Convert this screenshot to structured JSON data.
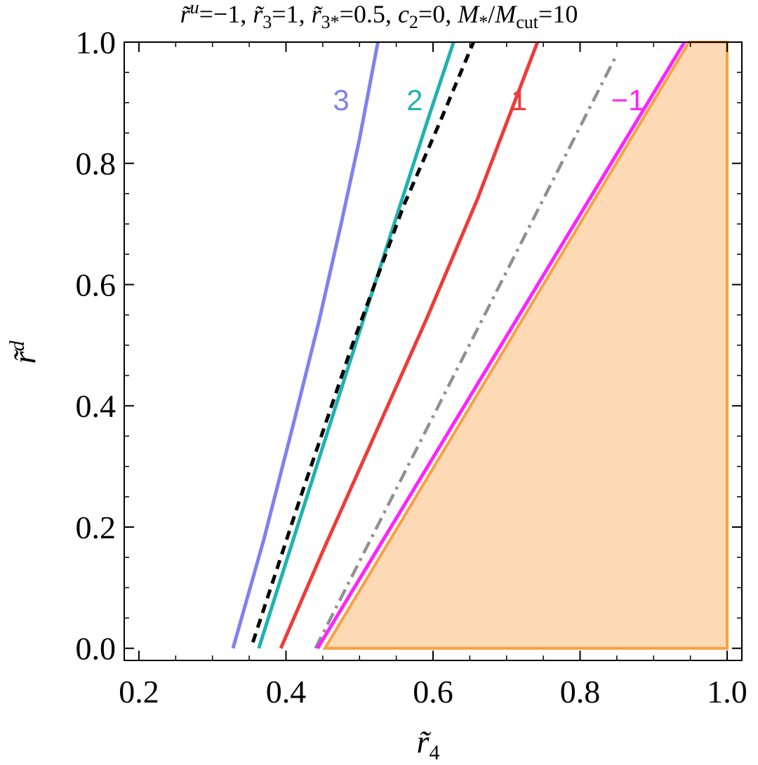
{
  "chart_data": {
    "type": "line",
    "title": "r̃ᵘ=−1, r̃₃=1, r̃₃*=0.5, c₂=0, M*/Mcut=10",
    "title_parts": {
      "ru": "r̃",
      "ru_sup": "u",
      "ru_val": "=−1, ",
      "r3": "r̃",
      "r3_sub": "3",
      "r3_val": "=1, ",
      "r3s": "r̃",
      "r3s_sub": "3*",
      "r3s_val": "=0.5, ",
      "c2": "c",
      "c2_sub": "2",
      "c2_val": "=0, ",
      "ms": "M",
      "ms_sub": "*",
      "slash": "/",
      "mc": "M",
      "mc_sub": "cut",
      "mc_val": "=10"
    },
    "xlabel": "r̃",
    "xlabel_sub": "4",
    "ylabel": "r̃",
    "ylabel_sup": "d",
    "xlim": [
      0.18,
      1.02
    ],
    "ylim": [
      -0.02,
      1.0
    ],
    "x_ticks": [
      "0.2",
      "0.4",
      "0.6",
      "0.8",
      "1.0"
    ],
    "x_tick_values": [
      0.2,
      0.4,
      0.6,
      0.8,
      1.0
    ],
    "y_ticks": [
      "0.0",
      "0.2",
      "0.4",
      "0.6",
      "0.8",
      "1.0"
    ],
    "y_tick_values": [
      0.0,
      0.2,
      0.4,
      0.6,
      0.8,
      1.0
    ],
    "frame": "box",
    "grid": false,
    "series": [
      {
        "label": "3",
        "color": "#8080f0",
        "style": "solid",
        "x": [
          0.328,
          0.37,
          0.41,
          0.445,
          0.475,
          0.5,
          0.525
        ],
        "y": [
          0.0,
          0.18,
          0.37,
          0.54,
          0.7,
          0.84,
          1.0
        ]
      },
      {
        "label": "2",
        "color": "#1fb2b2",
        "style": "solid",
        "x": [
          0.363,
          0.41,
          0.46,
          0.51,
          0.555,
          0.595,
          0.628
        ],
        "y": [
          0.0,
          0.18,
          0.37,
          0.56,
          0.73,
          0.88,
          1.0
        ]
      },
      {
        "label": "",
        "color": "#000000",
        "style": "dashed",
        "x": [
          0.355,
          0.42,
          0.49,
          0.56,
          0.61,
          0.655
        ],
        "y": [
          0.01,
          0.25,
          0.5,
          0.73,
          0.87,
          1.0
        ]
      },
      {
        "label": "1",
        "color": "#ee3b3b",
        "style": "solid",
        "x": [
          0.393,
          0.45,
          0.52,
          0.59,
          0.66,
          0.742
        ],
        "y": [
          0.0,
          0.16,
          0.35,
          0.54,
          0.74,
          1.0
        ]
      },
      {
        "label": "",
        "color": "#909090",
        "style": "dashdot",
        "x": [
          0.44,
          0.85
        ],
        "y": [
          0.0,
          0.98
        ]
      },
      {
        "label": "−1",
        "color": "#ff22ff",
        "style": "solid",
        "x": [
          0.443,
          0.942
        ],
        "y": [
          0.0,
          1.0
        ]
      }
    ],
    "region": {
      "fill": "#fdd9b5",
      "stroke": "#f7a140",
      "x": [
        0.453,
        0.948,
        1.0,
        1.0,
        0.453
      ],
      "y": [
        0.0,
        1.0,
        1.0,
        0.0,
        0.0
      ]
    },
    "curve_labels": [
      {
        "text": "3",
        "color": "#8080f0",
        "x": 0.475,
        "y": 0.905
      },
      {
        "text": "2",
        "color": "#1fb2b2",
        "x": 0.575,
        "y": 0.905
      },
      {
        "text": "1",
        "color": "#ee3b3b",
        "x": 0.717,
        "y": 0.905
      },
      {
        "text": "−1",
        "color": "#ff22ff",
        "x": 0.865,
        "y": 0.905
      }
    ]
  }
}
